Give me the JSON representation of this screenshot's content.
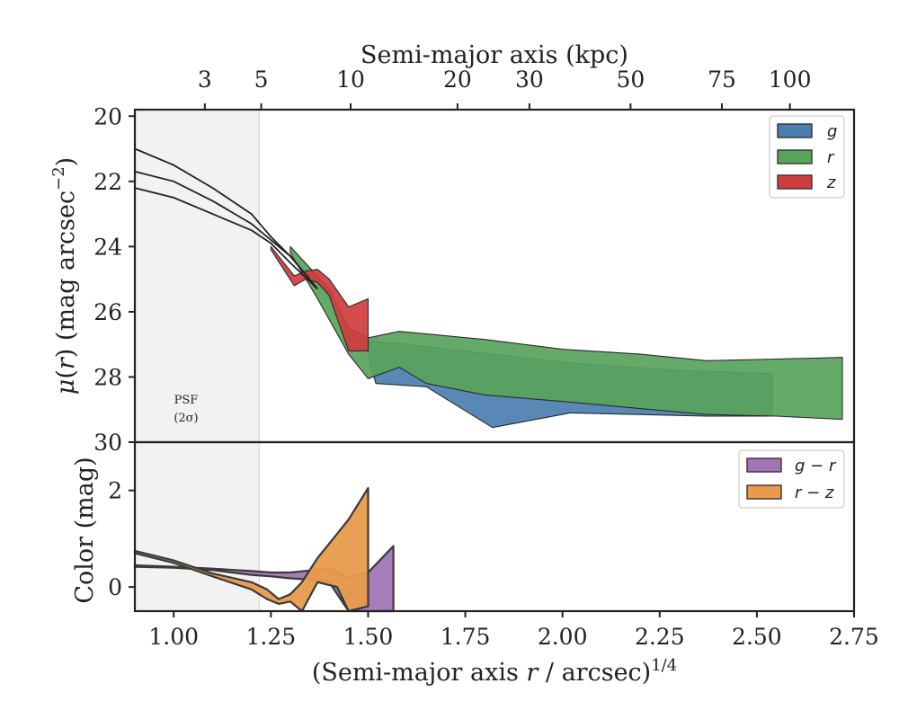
{
  "chart_data": [
    {
      "panel": "surface-brightness",
      "type": "area",
      "xlabel": "(Semi-major axis r / arcsec)^1/4",
      "ylabel": "μ(r) (mag arcsec⁻²)",
      "top_xlabel": "Semi-major axis (kpc)",
      "xlim": [
        0.9,
        2.75
      ],
      "ylim": [
        30,
        19.8
      ],
      "y_inverted": true,
      "y_ticks": [
        20,
        22,
        24,
        26,
        28,
        30
      ],
      "top_x_ticks": [
        {
          "label": "3",
          "x": 1.08
        },
        {
          "label": "5",
          "x": 1.225
        },
        {
          "label": "10",
          "x": 1.455
        },
        {
          "label": "20",
          "x": 1.73
        },
        {
          "label": "30",
          "x": 1.915
        },
        {
          "label": "50",
          "x": 2.175
        },
        {
          "label": "75",
          "x": 2.41
        },
        {
          "label": "100",
          "x": 2.585
        }
      ],
      "psf_region": {
        "x_max": 1.22,
        "label_line1": "PSF",
        "label_line2": "(2σ)"
      },
      "legend_position": "top-right",
      "series": [
        {
          "name": "g",
          "color": "#4c7eb0",
          "upper": [
            [
              1.5,
              26.9
            ],
            [
              1.6,
              27.0
            ],
            [
              1.82,
              27.3
            ],
            [
              2.0,
              27.55
            ],
            [
              2.3,
              27.8
            ],
            [
              2.54,
              27.9
            ]
          ],
          "lower": [
            [
              1.5,
              27.4
            ],
            [
              1.52,
              28.2
            ],
            [
              1.65,
              28.3
            ],
            [
              1.82,
              29.55
            ],
            [
              2.02,
              29.1
            ],
            [
              2.37,
              29.2
            ],
            [
              2.54,
              29.2
            ]
          ]
        },
        {
          "name": "r",
          "color": "#59a35c",
          "upper": [
            [
              1.3,
              24.0
            ],
            [
              1.4,
              25.3
            ],
            [
              1.45,
              26.5
            ],
            [
              1.5,
              26.8
            ],
            [
              1.58,
              26.6
            ],
            [
              1.8,
              26.85
            ],
            [
              2.0,
              27.15
            ],
            [
              2.2,
              27.3
            ],
            [
              2.37,
              27.5
            ],
            [
              2.55,
              27.45
            ],
            [
              2.72,
              27.4
            ]
          ],
          "lower": [
            [
              1.3,
              24.2
            ],
            [
              1.37,
              25.6
            ],
            [
              1.45,
              27.3
            ],
            [
              1.5,
              28.05
            ],
            [
              1.58,
              27.7
            ],
            [
              1.65,
              28.2
            ],
            [
              1.8,
              28.55
            ],
            [
              2.0,
              28.75
            ],
            [
              2.37,
              29.15
            ],
            [
              2.55,
              29.2
            ],
            [
              2.72,
              29.3
            ]
          ]
        },
        {
          "name": "z",
          "color": "#d03c3e",
          "upper": [
            [
              1.25,
              24.0
            ],
            [
              1.31,
              24.9
            ],
            [
              1.34,
              24.75
            ],
            [
              1.37,
              24.7
            ],
            [
              1.4,
              25.0
            ],
            [
              1.45,
              25.85
            ],
            [
              1.5,
              25.6
            ]
          ],
          "lower": [
            [
              1.25,
              24.1
            ],
            [
              1.31,
              25.2
            ],
            [
              1.34,
              25.0
            ],
            [
              1.37,
              25.1
            ],
            [
              1.4,
              25.5
            ],
            [
              1.45,
              27.2
            ],
            [
              1.5,
              27.2
            ]
          ]
        }
      ],
      "psf_curves": [
        {
          "name": "psf-1",
          "points": [
            [
              0.9,
              21.0
            ],
            [
              1.0,
              21.5
            ],
            [
              1.1,
              22.2
            ],
            [
              1.2,
              23.0
            ],
            [
              1.25,
              23.7
            ],
            [
              1.3,
              24.3
            ],
            [
              1.35,
              25.0
            ]
          ]
        },
        {
          "name": "psf-2",
          "points": [
            [
              0.9,
              21.7
            ],
            [
              1.0,
              22.0
            ],
            [
              1.1,
              22.6
            ],
            [
              1.2,
              23.3
            ],
            [
              1.25,
              23.8
            ],
            [
              1.3,
              24.3
            ],
            [
              1.37,
              25.3
            ]
          ]
        },
        {
          "name": "psf-3",
          "points": [
            [
              0.9,
              22.2
            ],
            [
              1.0,
              22.5
            ],
            [
              1.1,
              23.0
            ],
            [
              1.2,
              23.5
            ],
            [
              1.25,
              23.9
            ],
            [
              1.3,
              24.5
            ],
            [
              1.37,
              25.3
            ]
          ]
        }
      ]
    },
    {
      "panel": "color",
      "type": "area",
      "xlabel": "(Semi-major axis r / arcsec)^1/4",
      "ylabel": "Color (mag)",
      "xlim": [
        0.9,
        2.75
      ],
      "ylim": [
        -0.5,
        3.0
      ],
      "y_ticks": [
        0,
        2
      ],
      "x_ticks": [
        1.0,
        1.25,
        1.5,
        1.75,
        2.0,
        2.25,
        2.5,
        2.75
      ],
      "x_tick_labels": [
        "1.00",
        "1.25",
        "1.50",
        "1.75",
        "2.00",
        "2.25",
        "2.50",
        "2.75"
      ],
      "legend_position": "top-right",
      "series": [
        {
          "name": "g − r",
          "color": "#a176b4",
          "upper": [
            [
              0.9,
              0.45
            ],
            [
              1.0,
              0.42
            ],
            [
              1.1,
              0.38
            ],
            [
              1.2,
              0.33
            ],
            [
              1.25,
              0.3
            ],
            [
              1.3,
              0.3
            ],
            [
              1.36,
              0.35
            ],
            [
              1.4,
              0.4
            ],
            [
              1.45,
              0.2
            ],
            [
              1.5,
              0.3
            ],
            [
              1.565,
              0.85
            ]
          ],
          "lower": [
            [
              0.9,
              0.42
            ],
            [
              1.0,
              0.4
            ],
            [
              1.1,
              0.35
            ],
            [
              1.2,
              0.25
            ],
            [
              1.25,
              0.22
            ],
            [
              1.3,
              0.18
            ],
            [
              1.36,
              0.15
            ],
            [
              1.4,
              0.1
            ],
            [
              1.45,
              -0.5
            ],
            [
              1.5,
              -0.5
            ],
            [
              1.565,
              -0.5
            ]
          ]
        },
        {
          "name": "r − z",
          "color": "#e99b4b",
          "upper": [
            [
              0.9,
              0.75
            ],
            [
              1.0,
              0.55
            ],
            [
              1.1,
              0.28
            ],
            [
              1.2,
              0.1
            ],
            [
              1.24,
              -0.05
            ],
            [
              1.27,
              -0.25
            ],
            [
              1.3,
              -0.15
            ],
            [
              1.33,
              0.1
            ],
            [
              1.37,
              0.6
            ],
            [
              1.42,
              1.1
            ],
            [
              1.45,
              1.4
            ],
            [
              1.5,
              2.05
            ]
          ],
          "lower": [
            [
              0.9,
              0.7
            ],
            [
              1.0,
              0.5
            ],
            [
              1.1,
              0.22
            ],
            [
              1.2,
              -0.05
            ],
            [
              1.24,
              -0.25
            ],
            [
              1.27,
              -0.35
            ],
            [
              1.3,
              -0.3
            ],
            [
              1.33,
              -0.5
            ],
            [
              1.37,
              0.1
            ],
            [
              1.42,
              0.0
            ],
            [
              1.45,
              -0.5
            ],
            [
              1.5,
              -0.4
            ]
          ]
        }
      ]
    }
  ],
  "styles": {
    "psf_shade": "#f2f2f2",
    "psf_curve_color": "#222222",
    "axis_color": "#222222"
  }
}
